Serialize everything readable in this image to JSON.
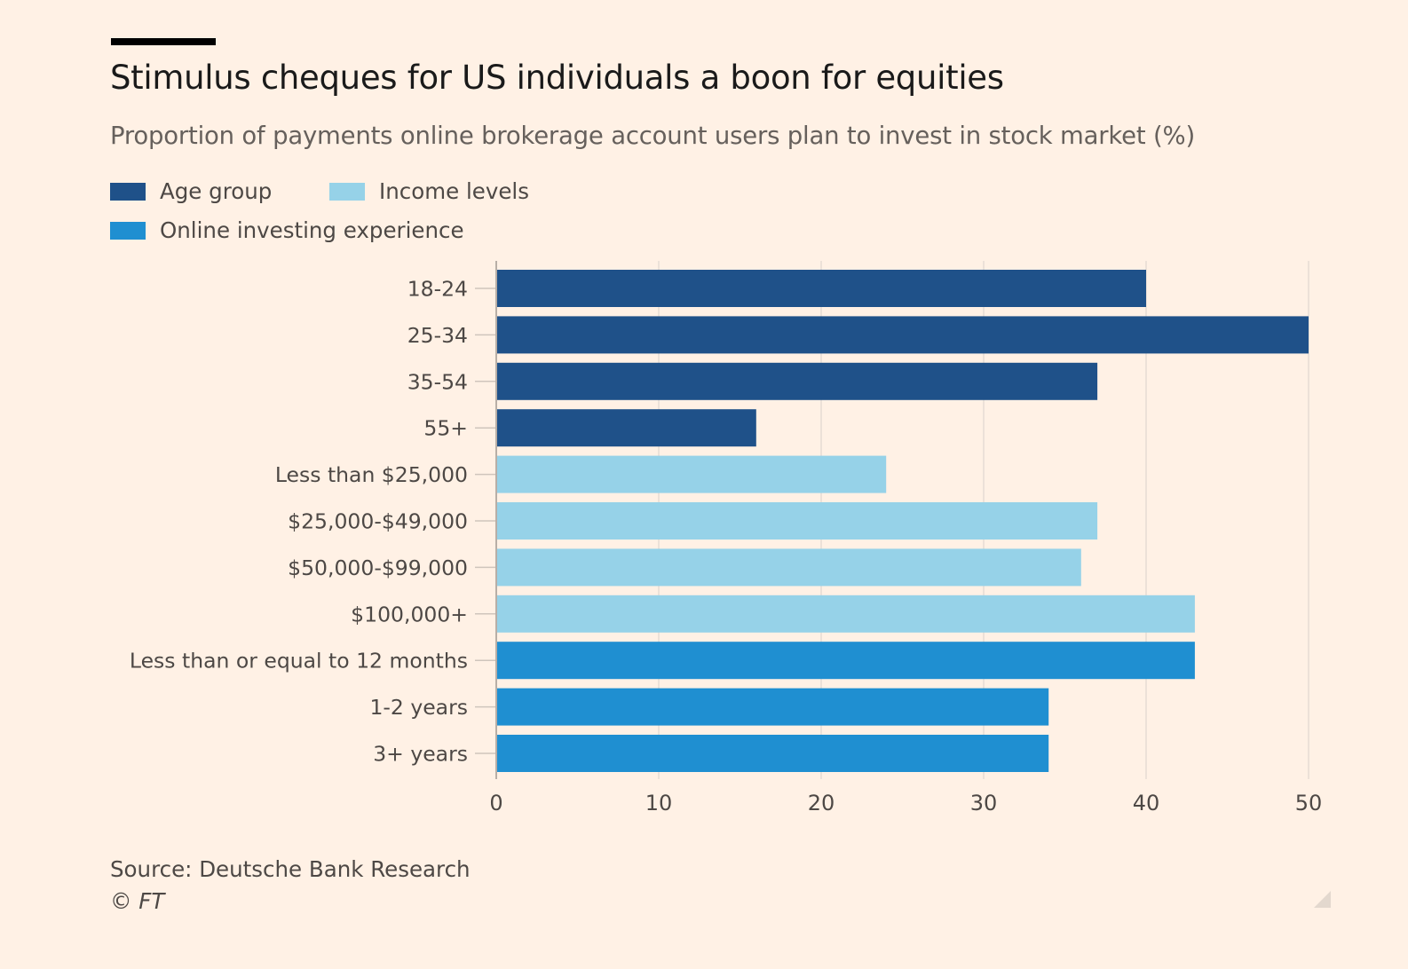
{
  "header": {
    "title": "Stimulus cheques for US individuals a boon for equities",
    "subtitle": "Proportion of payments online brokerage account users plan to invest in stock market (%)"
  },
  "legend": [
    {
      "label": "Age group",
      "color": "#1f5189"
    },
    {
      "label": "Income levels",
      "color": "#96d2e8"
    },
    {
      "label": "Online investing experience",
      "color": "#1f8fd1"
    }
  ],
  "footer": {
    "source": "Source: Deutsche Bank Research",
    "copyright": "© FT"
  },
  "chart_data": {
    "type": "bar",
    "orientation": "horizontal",
    "title": "Stimulus cheques for US individuals a boon for equities",
    "subtitle": "Proportion of payments online brokerage account users plan to invest in stock market (%)",
    "xlabel": "",
    "ylabel": "",
    "xlim": [
      0,
      50
    ],
    "xticks": [
      0,
      10,
      20,
      30,
      40,
      50
    ],
    "grid": true,
    "legend_position": "top-left",
    "categories": [
      "18-24",
      "25-34",
      "35-54",
      "55+",
      "Less than $25,000",
      "$25,000-$49,000",
      "$50,000-$99,000",
      "$100,000+",
      "Less than or equal to 12 months",
      "1-2 years",
      "3+ years"
    ],
    "values": [
      40,
      50,
      37,
      16,
      24,
      37,
      36,
      43,
      43,
      34,
      34
    ],
    "groups": [
      "Age group",
      "Age group",
      "Age group",
      "Age group",
      "Income levels",
      "Income levels",
      "Income levels",
      "Income levels",
      "Online investing experience",
      "Online investing experience",
      "Online investing experience"
    ],
    "colors": {
      "Age group": "#1f5189",
      "Income levels": "#96d2e8",
      "Online investing experience": "#1f8fd1"
    }
  }
}
